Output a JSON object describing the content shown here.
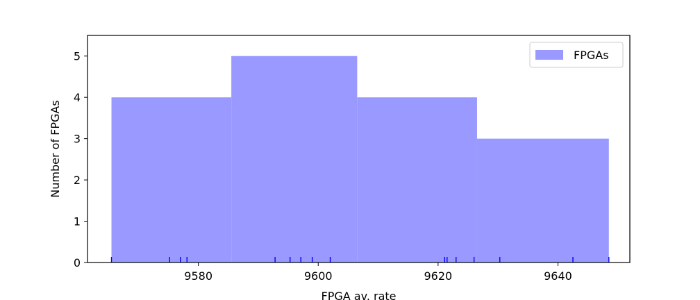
{
  "chart_data": {
    "type": "histogram",
    "xlabel": "FPGA av. rate",
    "ylabel": "Number of FPGAs",
    "xlim": [
      9561.5,
      9652
    ],
    "ylim": [
      0,
      5.5
    ],
    "xticks": [
      9580,
      9600,
      9620,
      9640
    ],
    "yticks": [
      0,
      1,
      2,
      3,
      4,
      5
    ],
    "grid": false,
    "legend_position": "top-right",
    "series": [
      {
        "name": "FPGAs",
        "color": "#9999ff",
        "bins": [
          {
            "x0": 9565.5,
            "x1": 9585.5,
            "count": 4
          },
          {
            "x0": 9585.5,
            "x1": 9606.5,
            "count": 5
          },
          {
            "x0": 9606.5,
            "x1": 9626.5,
            "count": 4
          },
          {
            "x0": 9626.5,
            "x1": 9648.5,
            "count": 3
          }
        ]
      }
    ],
    "rug": {
      "color": "#0000ff",
      "values": [
        9565.5,
        9575.2,
        9577.0,
        9578.1,
        9592.8,
        9595.3,
        9597.1,
        9599.0,
        9602.0,
        9621.1,
        9621.5,
        9623.0,
        9626.0,
        9630.3,
        9642.5,
        9648.5
      ]
    }
  }
}
